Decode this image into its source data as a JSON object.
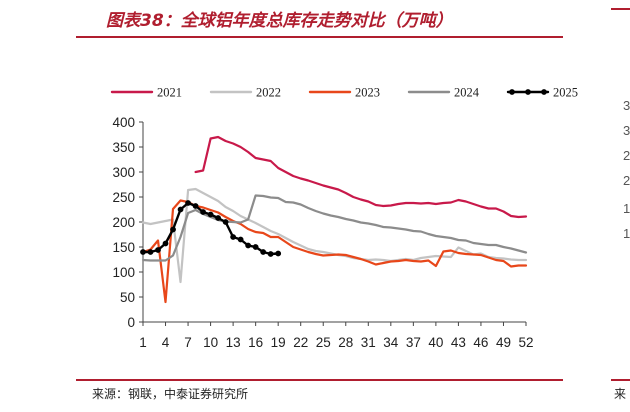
{
  "header": {
    "title": "图表38：全球铝年度总库存走势对比（万吨）"
  },
  "footer": {
    "source": "来源：钢联，中泰证券研究所",
    "right_fragment": "来"
  },
  "side_panel": {
    "partial_ticks": [
      "3",
      "3",
      "2",
      "2",
      "1",
      "1"
    ]
  },
  "colors": {
    "accent": "#b01e2f"
  },
  "chart_data": {
    "type": "line",
    "title": "",
    "xlabel": "",
    "ylabel": "",
    "xlim": [
      1,
      52
    ],
    "ylim": [
      0,
      400
    ],
    "yticks": [
      0,
      50,
      100,
      150,
      200,
      250,
      300,
      350,
      400
    ],
    "xticks": [
      1,
      4,
      7,
      10,
      13,
      16,
      19,
      22,
      25,
      28,
      31,
      34,
      37,
      40,
      43,
      46,
      49,
      52
    ],
    "grid": false,
    "legend_position": "top",
    "series": [
      {
        "name": "2021",
        "color": "#c8194a",
        "markers": false,
        "x": [
          8,
          9,
          10,
          11,
          12,
          13,
          14,
          15,
          16,
          17,
          18,
          19,
          20,
          21,
          22,
          23,
          24,
          25,
          26,
          27,
          28,
          29,
          30,
          31,
          32,
          33,
          34,
          35,
          36,
          37,
          38,
          39,
          40,
          41,
          42,
          43,
          44,
          45,
          46,
          47,
          48,
          49,
          50,
          51,
          52
        ],
        "y": [
          300,
          303,
          367,
          370,
          362,
          357,
          350,
          340,
          328,
          325,
          322,
          308,
          300,
          292,
          287,
          283,
          278,
          273,
          269,
          265,
          258,
          250,
          245,
          241,
          234,
          232,
          233,
          236,
          238,
          238,
          237,
          238,
          236,
          238,
          239,
          244,
          241,
          236,
          231,
          227,
          227,
          221,
          212,
          210,
          211
        ]
      },
      {
        "name": "2022",
        "color": "#c3c3c3",
        "markers": false,
        "x": [
          1,
          2,
          3,
          4,
          5,
          6,
          7,
          8,
          9,
          10,
          11,
          12,
          13,
          14,
          15,
          16,
          17,
          18,
          19,
          20,
          21,
          22,
          23,
          24,
          25,
          26,
          27,
          28,
          29,
          30,
          31,
          32,
          33,
          34,
          35,
          36,
          37,
          38,
          39,
          40,
          41,
          42,
          43,
          44,
          45,
          46,
          47,
          48,
          49,
          50,
          51,
          52
        ],
        "y": [
          199,
          196,
          199,
          202,
          205,
          80,
          264,
          266,
          258,
          250,
          242,
          230,
          222,
          212,
          205,
          198,
          190,
          182,
          176,
          168,
          160,
          153,
          146,
          142,
          140,
          137,
          134,
          132,
          128,
          126,
          124,
          125,
          124,
          122,
          124,
          126,
          124,
          128,
          130,
          132,
          131,
          130,
          149,
          142,
          135,
          137,
          130,
          128,
          127,
          125,
          124,
          124
        ]
      },
      {
        "name": "2023",
        "color": "#e8471a",
        "markers": false,
        "x": [
          1,
          2,
          3,
          4,
          5,
          6,
          7,
          8,
          9,
          10,
          11,
          12,
          13,
          14,
          15,
          16,
          17,
          18,
          19,
          20,
          21,
          22,
          23,
          24,
          25,
          26,
          27,
          28,
          29,
          30,
          31,
          32,
          33,
          34,
          35,
          36,
          37,
          38,
          39,
          40,
          41,
          42,
          43,
          44,
          45,
          46,
          47,
          48,
          49,
          50,
          51,
          52
        ],
        "y": [
          140,
          145,
          163,
          40,
          226,
          243,
          240,
          232,
          229,
          224,
          219,
          210,
          202,
          196,
          186,
          180,
          178,
          170,
          170,
          160,
          150,
          145,
          140,
          136,
          133,
          134,
          135,
          134,
          130,
          126,
          121,
          115,
          118,
          121,
          122,
          124,
          122,
          121,
          123,
          112,
          141,
          143,
          138,
          136,
          135,
          134,
          129,
          124,
          122,
          111,
          113,
          113
        ]
      },
      {
        "name": "2024",
        "color": "#8c8c8c",
        "markers": false,
        "x": [
          1,
          2,
          3,
          4,
          5,
          6,
          7,
          8,
          9,
          10,
          11,
          12,
          13,
          14,
          15,
          16,
          17,
          18,
          19,
          20,
          21,
          22,
          23,
          24,
          25,
          26,
          27,
          28,
          29,
          30,
          31,
          32,
          33,
          34,
          35,
          36,
          37,
          38,
          39,
          40,
          41,
          42,
          43,
          44,
          45,
          46,
          47,
          48,
          49,
          50,
          51,
          52
        ],
        "y": [
          124,
          123,
          123,
          123,
          133,
          170,
          218,
          224,
          216,
          210,
          204,
          201,
          200,
          199,
          205,
          253,
          252,
          249,
          248,
          240,
          239,
          235,
          228,
          222,
          217,
          213,
          210,
          206,
          203,
          199,
          197,
          194,
          190,
          189,
          187,
          185,
          182,
          181,
          176,
          172,
          170,
          168,
          164,
          163,
          158,
          156,
          154,
          154,
          150,
          147,
          143,
          139
        ]
      },
      {
        "name": "2025",
        "color": "#000000",
        "markers": true,
        "x": [
          1,
          2,
          3,
          4,
          5,
          6,
          7,
          8,
          9,
          10,
          11,
          12,
          13,
          14,
          15,
          16,
          17,
          18,
          19
        ],
        "y": [
          140,
          140,
          144,
          157,
          185,
          225,
          238,
          232,
          220,
          215,
          208,
          200,
          170,
          165,
          153,
          150,
          140,
          136,
          137
        ]
      }
    ]
  }
}
